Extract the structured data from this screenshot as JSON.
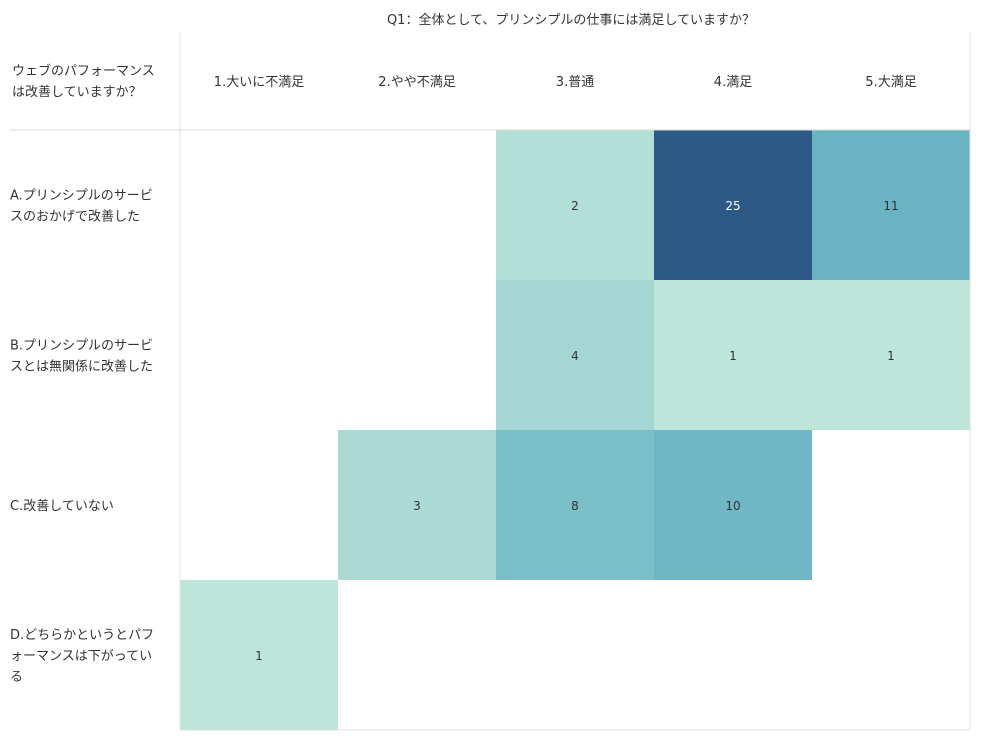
{
  "chart_data": {
    "type": "heatmap",
    "title": "",
    "column_title": "Q1：全体として、プリンシプルの仕事には満足していますか？",
    "row_title_lines": [
      "ウェブのパフォーマンス",
      "は改善していますか？"
    ],
    "columns": [
      "1.大いに不満足",
      "2.やや不満足",
      "3.普通",
      "4.満足",
      "5.大満足"
    ],
    "rows": [
      {
        "label_lines": [
          "A.プリンシプルのサービ",
          "スのおかげで改善した"
        ]
      },
      {
        "label_lines": [
          "B.プリンシプルのサービ",
          "スとは無関係に改善した"
        ]
      },
      {
        "label_lines": [
          "C.改善していない"
        ]
      },
      {
        "label_lines": [
          "D.どちらかというとパフ",
          "ォーマンスは下がってい",
          "る"
        ]
      }
    ],
    "values": [
      [
        null,
        null,
        2,
        25,
        11
      ],
      [
        null,
        null,
        4,
        1,
        1
      ],
      [
        null,
        3,
        8,
        10,
        null
      ],
      [
        1,
        null,
        null,
        null,
        null
      ]
    ],
    "color_scale": {
      "min": 1,
      "max": 25,
      "stops": [
        "#bde5da",
        "#b3e0d7",
        "#a3d5d3",
        "#7bbfc8",
        "#62aec1",
        "#5aa9c2",
        "#2c5985"
      ]
    },
    "grid": false,
    "legend": "none"
  }
}
